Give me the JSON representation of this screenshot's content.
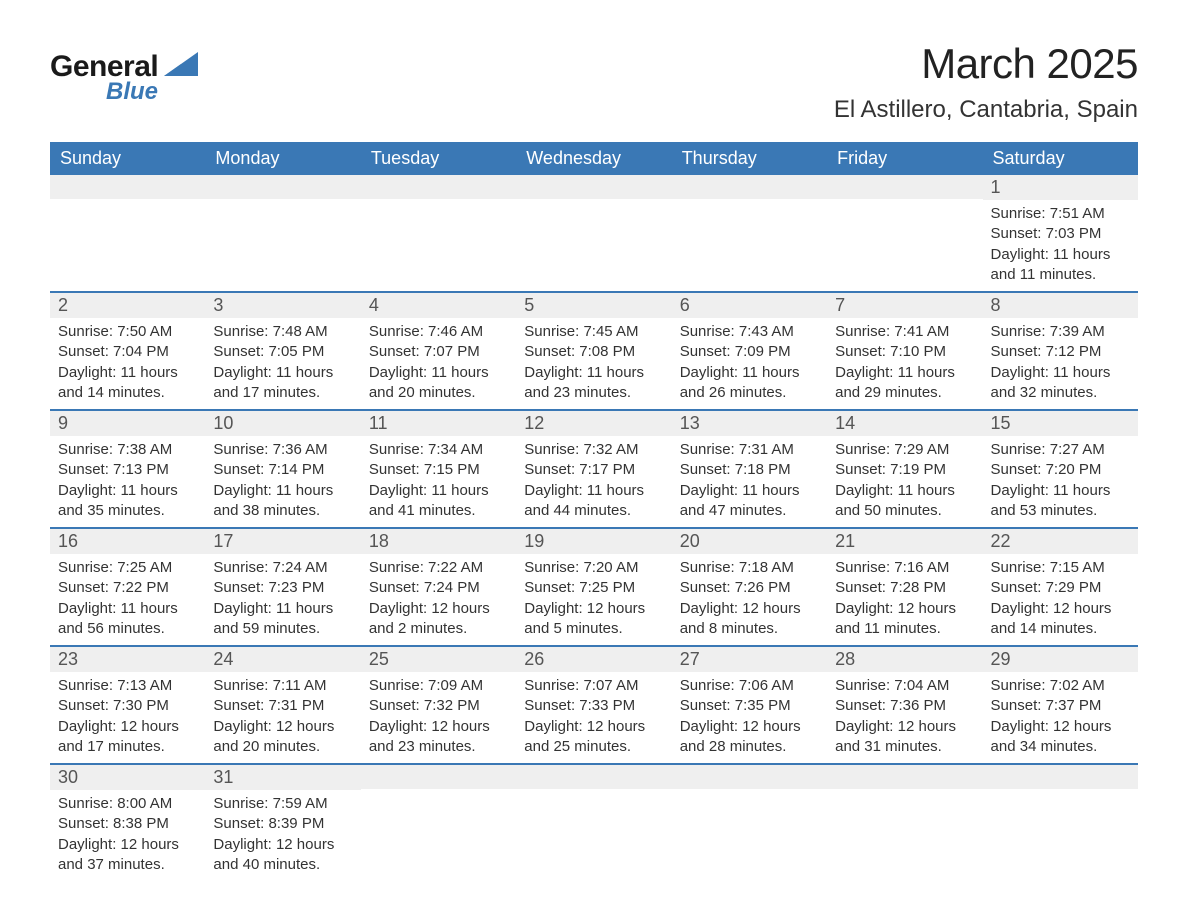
{
  "logo": {
    "text_general": "General",
    "text_blue": "Blue",
    "brand_color": "#3a78b5"
  },
  "title": "March 2025",
  "location": "El Astillero, Cantabria, Spain",
  "colors": {
    "header_bg": "#3a78b5",
    "header_text": "#ffffff",
    "daynum_bg": "#efefef",
    "row_divider": "#3a78b5",
    "body_text": "#333333"
  },
  "day_headers": [
    "Sunday",
    "Monday",
    "Tuesday",
    "Wednesday",
    "Thursday",
    "Friday",
    "Saturday"
  ],
  "weeks": [
    [
      null,
      null,
      null,
      null,
      null,
      null,
      {
        "n": "1",
        "sunrise": "Sunrise: 7:51 AM",
        "sunset": "Sunset: 7:03 PM",
        "day1": "Daylight: 11 hours",
        "day2": "and 11 minutes."
      }
    ],
    [
      {
        "n": "2",
        "sunrise": "Sunrise: 7:50 AM",
        "sunset": "Sunset: 7:04 PM",
        "day1": "Daylight: 11 hours",
        "day2": "and 14 minutes."
      },
      {
        "n": "3",
        "sunrise": "Sunrise: 7:48 AM",
        "sunset": "Sunset: 7:05 PM",
        "day1": "Daylight: 11 hours",
        "day2": "and 17 minutes."
      },
      {
        "n": "4",
        "sunrise": "Sunrise: 7:46 AM",
        "sunset": "Sunset: 7:07 PM",
        "day1": "Daylight: 11 hours",
        "day2": "and 20 minutes."
      },
      {
        "n": "5",
        "sunrise": "Sunrise: 7:45 AM",
        "sunset": "Sunset: 7:08 PM",
        "day1": "Daylight: 11 hours",
        "day2": "and 23 minutes."
      },
      {
        "n": "6",
        "sunrise": "Sunrise: 7:43 AM",
        "sunset": "Sunset: 7:09 PM",
        "day1": "Daylight: 11 hours",
        "day2": "and 26 minutes."
      },
      {
        "n": "7",
        "sunrise": "Sunrise: 7:41 AM",
        "sunset": "Sunset: 7:10 PM",
        "day1": "Daylight: 11 hours",
        "day2": "and 29 minutes."
      },
      {
        "n": "8",
        "sunrise": "Sunrise: 7:39 AM",
        "sunset": "Sunset: 7:12 PM",
        "day1": "Daylight: 11 hours",
        "day2": "and 32 minutes."
      }
    ],
    [
      {
        "n": "9",
        "sunrise": "Sunrise: 7:38 AM",
        "sunset": "Sunset: 7:13 PM",
        "day1": "Daylight: 11 hours",
        "day2": "and 35 minutes."
      },
      {
        "n": "10",
        "sunrise": "Sunrise: 7:36 AM",
        "sunset": "Sunset: 7:14 PM",
        "day1": "Daylight: 11 hours",
        "day2": "and 38 minutes."
      },
      {
        "n": "11",
        "sunrise": "Sunrise: 7:34 AM",
        "sunset": "Sunset: 7:15 PM",
        "day1": "Daylight: 11 hours",
        "day2": "and 41 minutes."
      },
      {
        "n": "12",
        "sunrise": "Sunrise: 7:32 AM",
        "sunset": "Sunset: 7:17 PM",
        "day1": "Daylight: 11 hours",
        "day2": "and 44 minutes."
      },
      {
        "n": "13",
        "sunrise": "Sunrise: 7:31 AM",
        "sunset": "Sunset: 7:18 PM",
        "day1": "Daylight: 11 hours",
        "day2": "and 47 minutes."
      },
      {
        "n": "14",
        "sunrise": "Sunrise: 7:29 AM",
        "sunset": "Sunset: 7:19 PM",
        "day1": "Daylight: 11 hours",
        "day2": "and 50 minutes."
      },
      {
        "n": "15",
        "sunrise": "Sunrise: 7:27 AM",
        "sunset": "Sunset: 7:20 PM",
        "day1": "Daylight: 11 hours",
        "day2": "and 53 minutes."
      }
    ],
    [
      {
        "n": "16",
        "sunrise": "Sunrise: 7:25 AM",
        "sunset": "Sunset: 7:22 PM",
        "day1": "Daylight: 11 hours",
        "day2": "and 56 minutes."
      },
      {
        "n": "17",
        "sunrise": "Sunrise: 7:24 AM",
        "sunset": "Sunset: 7:23 PM",
        "day1": "Daylight: 11 hours",
        "day2": "and 59 minutes."
      },
      {
        "n": "18",
        "sunrise": "Sunrise: 7:22 AM",
        "sunset": "Sunset: 7:24 PM",
        "day1": "Daylight: 12 hours",
        "day2": "and 2 minutes."
      },
      {
        "n": "19",
        "sunrise": "Sunrise: 7:20 AM",
        "sunset": "Sunset: 7:25 PM",
        "day1": "Daylight: 12 hours",
        "day2": "and 5 minutes."
      },
      {
        "n": "20",
        "sunrise": "Sunrise: 7:18 AM",
        "sunset": "Sunset: 7:26 PM",
        "day1": "Daylight: 12 hours",
        "day2": "and 8 minutes."
      },
      {
        "n": "21",
        "sunrise": "Sunrise: 7:16 AM",
        "sunset": "Sunset: 7:28 PM",
        "day1": "Daylight: 12 hours",
        "day2": "and 11 minutes."
      },
      {
        "n": "22",
        "sunrise": "Sunrise: 7:15 AM",
        "sunset": "Sunset: 7:29 PM",
        "day1": "Daylight: 12 hours",
        "day2": "and 14 minutes."
      }
    ],
    [
      {
        "n": "23",
        "sunrise": "Sunrise: 7:13 AM",
        "sunset": "Sunset: 7:30 PM",
        "day1": "Daylight: 12 hours",
        "day2": "and 17 minutes."
      },
      {
        "n": "24",
        "sunrise": "Sunrise: 7:11 AM",
        "sunset": "Sunset: 7:31 PM",
        "day1": "Daylight: 12 hours",
        "day2": "and 20 minutes."
      },
      {
        "n": "25",
        "sunrise": "Sunrise: 7:09 AM",
        "sunset": "Sunset: 7:32 PM",
        "day1": "Daylight: 12 hours",
        "day2": "and 23 minutes."
      },
      {
        "n": "26",
        "sunrise": "Sunrise: 7:07 AM",
        "sunset": "Sunset: 7:33 PM",
        "day1": "Daylight: 12 hours",
        "day2": "and 25 minutes."
      },
      {
        "n": "27",
        "sunrise": "Sunrise: 7:06 AM",
        "sunset": "Sunset: 7:35 PM",
        "day1": "Daylight: 12 hours",
        "day2": "and 28 minutes."
      },
      {
        "n": "28",
        "sunrise": "Sunrise: 7:04 AM",
        "sunset": "Sunset: 7:36 PM",
        "day1": "Daylight: 12 hours",
        "day2": "and 31 minutes."
      },
      {
        "n": "29",
        "sunrise": "Sunrise: 7:02 AM",
        "sunset": "Sunset: 7:37 PM",
        "day1": "Daylight: 12 hours",
        "day2": "and 34 minutes."
      }
    ],
    [
      {
        "n": "30",
        "sunrise": "Sunrise: 8:00 AM",
        "sunset": "Sunset: 8:38 PM",
        "day1": "Daylight: 12 hours",
        "day2": "and 37 minutes."
      },
      {
        "n": "31",
        "sunrise": "Sunrise: 7:59 AM",
        "sunset": "Sunset: 8:39 PM",
        "day1": "Daylight: 12 hours",
        "day2": "and 40 minutes."
      },
      null,
      null,
      null,
      null,
      null
    ]
  ]
}
